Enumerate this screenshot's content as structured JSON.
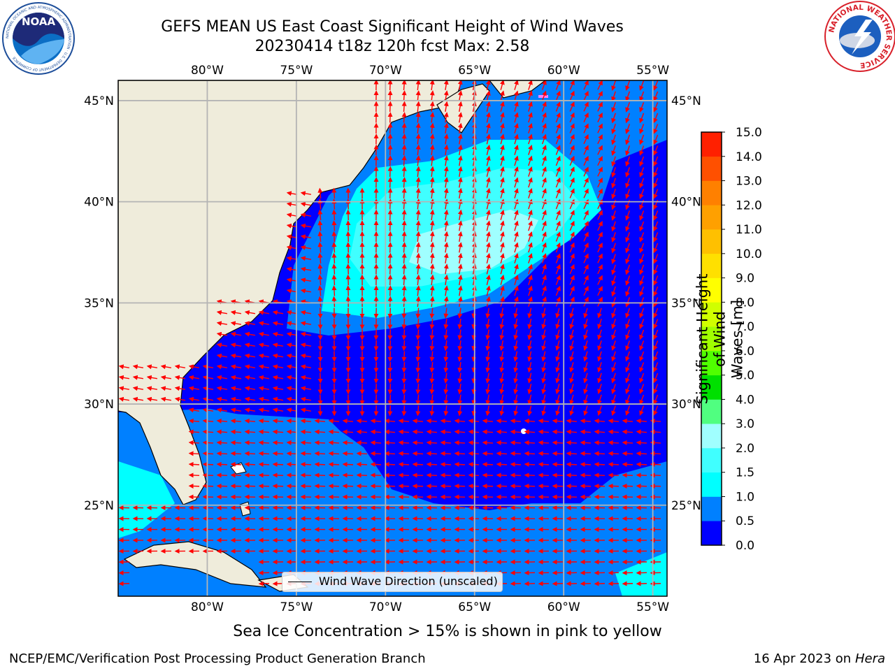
{
  "title": {
    "line1": "GEFS MEAN US East Coast Significant Height of Wind Waves",
    "line2": "20230414 t18z 120h fcst   Max: 2.58"
  },
  "map": {
    "lon_range": [
      -85,
      -54.2
    ],
    "lat_range": [
      20.5,
      46
    ],
    "lon_ticks": [
      "80°W",
      "75°W",
      "70°W",
      "65°W",
      "60°W",
      "55°W"
    ],
    "lat_ticks": [
      "45°N",
      "40°N",
      "35°N",
      "30°N",
      "25°N"
    ],
    "land_color": "#efecdb",
    "grid_color": "#b4b4b4",
    "arrow_color": "#ff0000",
    "legend_label": "Wind Wave Direction (unscaled)"
  },
  "colorbar": {
    "label": "Significant Height of Wind Waves [m]",
    "label_line1": "Significant Height of Wind",
    "label_line2": "Waves [m]",
    "ticks": [
      "15.0",
      "14.0",
      "13.0",
      "12.0",
      "11.0",
      "10.0",
      "9.0",
      "8.0",
      "7.0",
      "6.0",
      "5.0",
      "4.0",
      "3.0",
      "2.0",
      "1.5",
      "1.0",
      "0.5",
      "0.0"
    ],
    "colors": [
      "#0000ff",
      "#0080ff",
      "#00ffff",
      "#40ffff",
      "#a0ffff",
      "#50ff80",
      "#00e000",
      "#50ff00",
      "#a0ff00",
      "#d0ff00",
      "#ffff00",
      "#ffe000",
      "#ffc000",
      "#ffa000",
      "#ff8000",
      "#ff5000",
      "#ff2000"
    ]
  },
  "footnote": "Sea Ice Concentration > 15% is shown in pink to yellow",
  "credit_left": "NCEP/EMC/Verification Post Processing Product Generation Branch",
  "credit_right_prefix": "16 Apr 2023 on ",
  "credit_right_host": "Hera",
  "logos": {
    "noaa_text": "NOAA",
    "noaa_ring_text": "NATIONAL OCEANIC AND ATMOSPHERIC ADMINISTRATION · U.S. DEPARTMENT OF COMMERCE",
    "nws_ring_text": "NATIONAL WEATHER SERVICE"
  }
}
